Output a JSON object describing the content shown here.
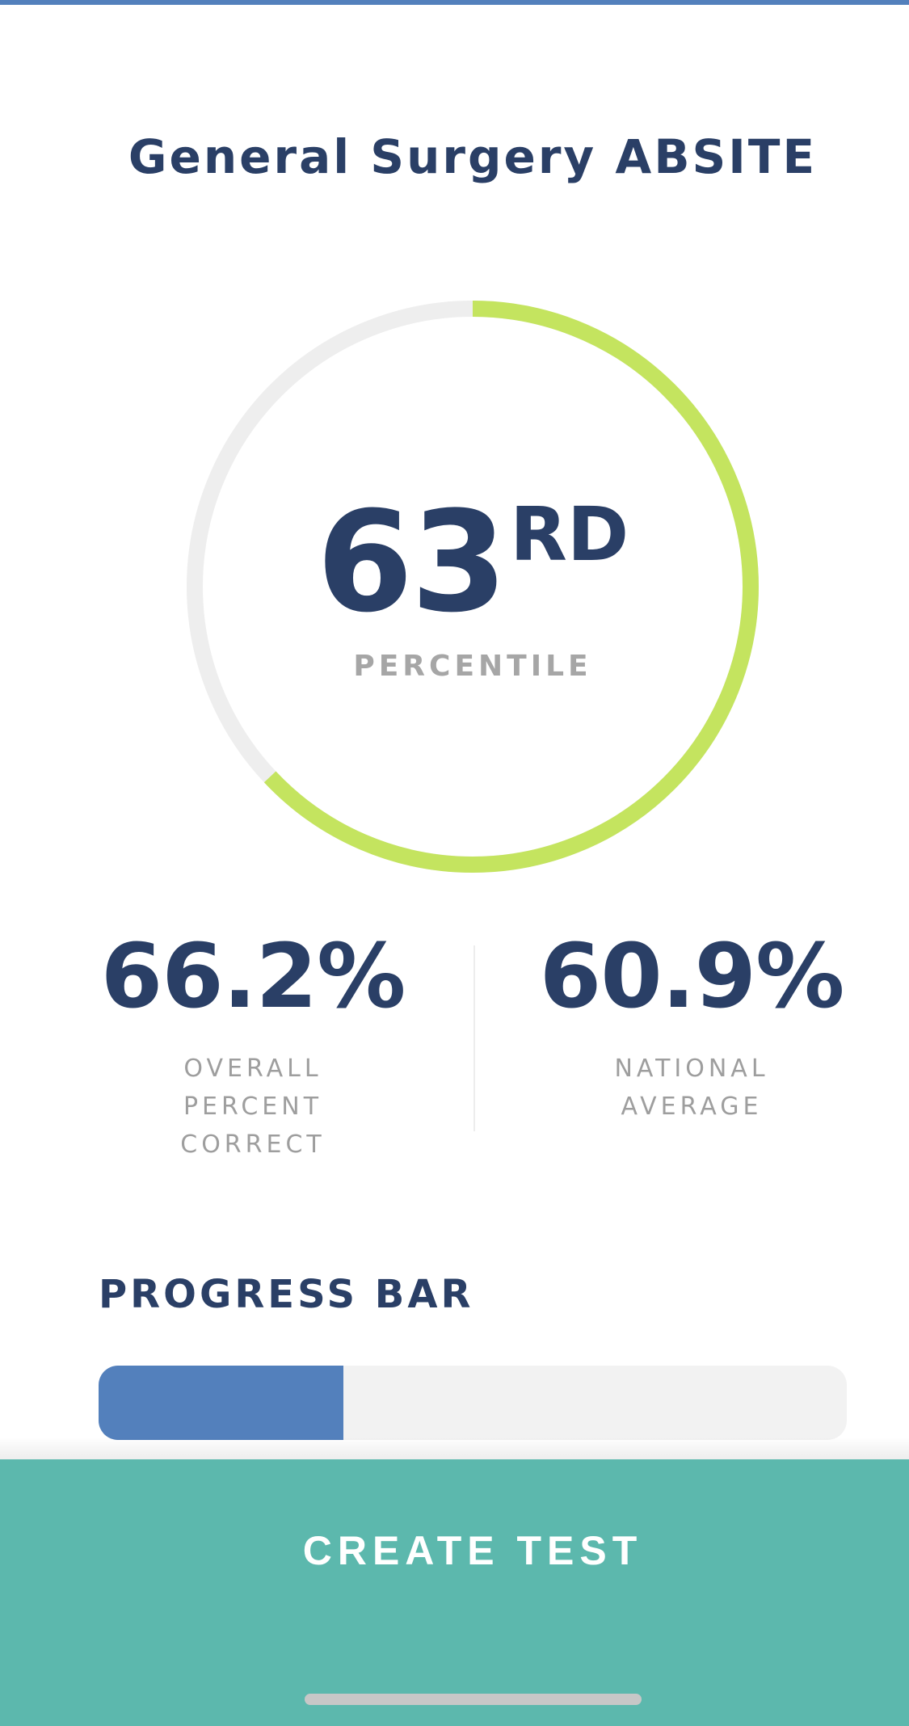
{
  "header": {
    "title": "General Surgery ABSITE"
  },
  "percentile": {
    "value": "63",
    "suffix": "RD",
    "caption": "PERCENTILE",
    "fraction": 0.63,
    "ring_color": "#c4e45f",
    "track_color": "#eeeeee"
  },
  "stats": {
    "overall": {
      "value": "66.2%",
      "label": "OVERALL PERCENT CORRECT"
    },
    "national": {
      "value": "60.9%",
      "label": "NATIONAL AVERAGE"
    }
  },
  "progress": {
    "label": "PROGRESS BAR",
    "fraction": 0.327,
    "fill_color": "#5380bc"
  },
  "cta": {
    "label": "CREATE TEST",
    "color": "#5cb8ad"
  },
  "colors": {
    "accent": "#5380bc",
    "heading": "#2a3f66",
    "muted": "#a6a6a6"
  }
}
